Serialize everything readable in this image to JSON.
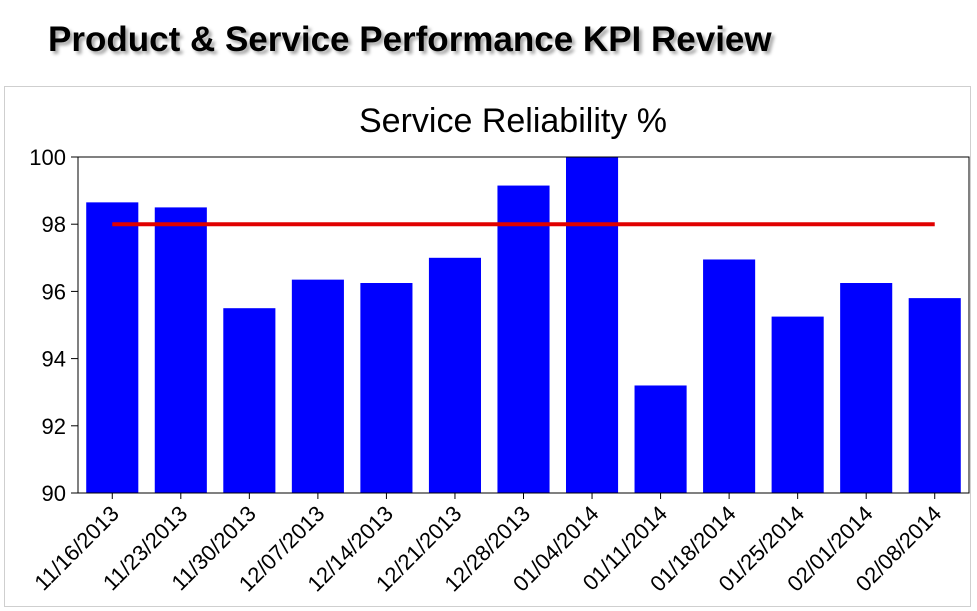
{
  "page": {
    "title": "Product & Service Performance KPI Review"
  },
  "chart_data": {
    "type": "bar",
    "title": "Service Reliability %",
    "xlabel": "",
    "ylabel": "",
    "categories": [
      "11/16/2013",
      "11/23/2013",
      "11/30/2013",
      "12/07/2013",
      "12/14/2013",
      "12/21/2013",
      "12/28/2013",
      "01/04/2014",
      "01/11/2014",
      "01/18/2014",
      "01/25/2014",
      "02/01/2014",
      "02/08/2014"
    ],
    "values": [
      98.65,
      98.5,
      95.5,
      96.35,
      96.25,
      97.0,
      99.15,
      100.0,
      93.2,
      96.95,
      95.25,
      96.25,
      95.8
    ],
    "ylim": [
      90,
      100
    ],
    "yticks": [
      90,
      92,
      94,
      96,
      98,
      100
    ],
    "target": 98,
    "grid": false,
    "colors": {
      "bar": "#0000ff",
      "target": "#e00000",
      "axis": "#000000"
    }
  }
}
